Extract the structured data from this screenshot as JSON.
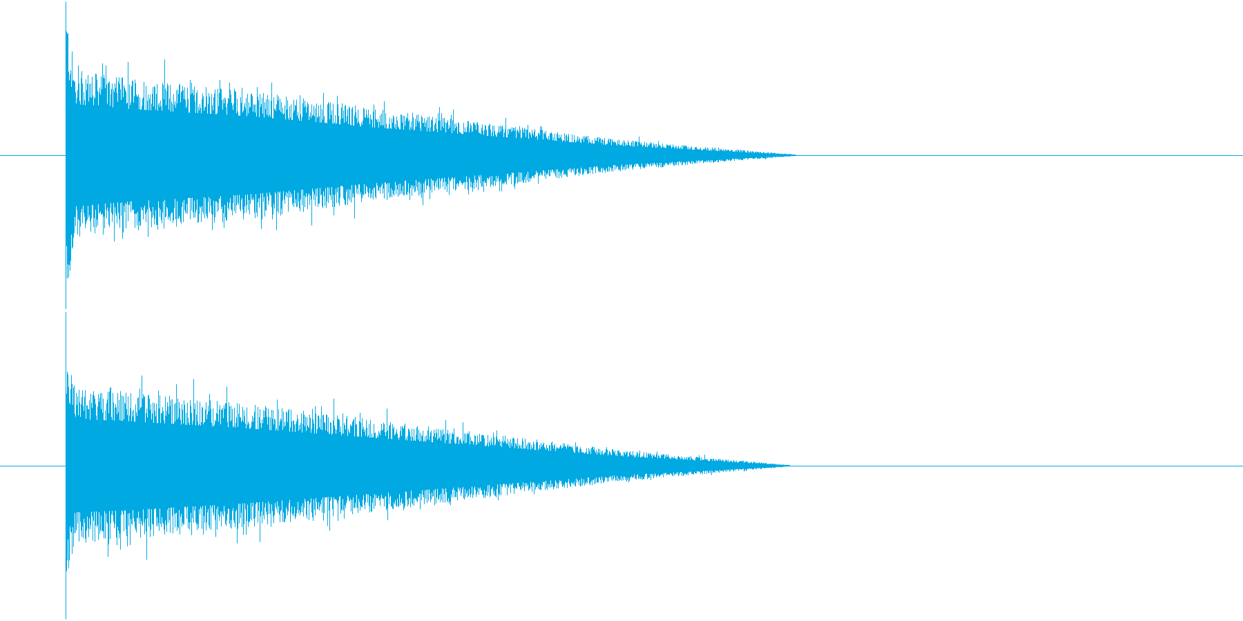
{
  "colors": {
    "background": "#ffffff",
    "waveform": "#00a9e2",
    "baseline": "#00a9e2"
  },
  "chart_data": {
    "type": "area",
    "title": "",
    "xlabel": "",
    "ylabel": "",
    "description_channels": 2,
    "ylim": [
      -1,
      1
    ],
    "xlim": [
      0,
      1
    ],
    "grid": false,
    "legend": "none",
    "series": [
      {
        "name": "",
        "onset": 0.053,
        "decay_end": 0.64,
        "peak_amplitude": 0.95,
        "sustain_amplitude": 0.52,
        "envelope": [
          [
            0.053,
            0.95
          ],
          [
            0.06,
            0.55
          ],
          [
            0.1,
            0.5
          ],
          [
            0.2,
            0.42
          ],
          [
            0.3,
            0.3
          ],
          [
            0.4,
            0.2
          ],
          [
            0.5,
            0.1
          ],
          [
            0.6,
            0.03
          ],
          [
            0.64,
            0.005
          ]
        ]
      },
      {
        "name": "",
        "onset": 0.053,
        "decay_end": 0.635,
        "peak_amplitude": 0.8,
        "sustain_amplitude": 0.5,
        "envelope": [
          [
            0.053,
            0.8
          ],
          [
            0.06,
            0.5
          ],
          [
            0.1,
            0.48
          ],
          [
            0.2,
            0.4
          ],
          [
            0.3,
            0.3
          ],
          [
            0.4,
            0.2
          ],
          [
            0.5,
            0.1
          ],
          [
            0.6,
            0.03
          ],
          [
            0.635,
            0.005
          ]
        ]
      }
    ]
  }
}
